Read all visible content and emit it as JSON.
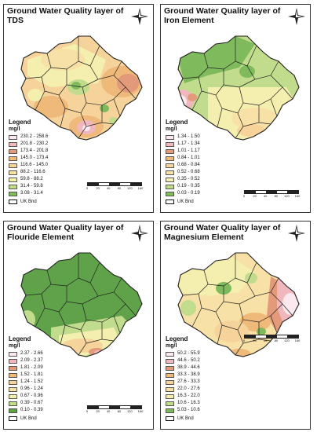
{
  "panels": [
    {
      "title_line1": "Ground Water Quality layer of",
      "title_line2": "TDS",
      "legend_title": "Legend",
      "legend_unit": "mg/l",
      "legend": [
        {
          "label": "230.2 - 258.6",
          "color": "#fbe9ef"
        },
        {
          "label": "201.8 - 230.2",
          "color": "#f0b7bd"
        },
        {
          "label": "173.4 - 201.8",
          "color": "#e39a7a"
        },
        {
          "label": "145.0 - 173.4",
          "color": "#efb979"
        },
        {
          "label": "116.6 - 145.0",
          "color": "#f6d39a"
        },
        {
          "label": "88.2 - 116.6",
          "color": "#f8e1a6"
        },
        {
          "label": "59.8 - 88.2",
          "color": "#f4efae"
        },
        {
          "label": "31.4 - 59.8",
          "color": "#c2dc8d"
        },
        {
          "label": "3.08 - 31.4",
          "color": "#7fba5c"
        }
      ],
      "boundary_label": "UK Bnd",
      "scale_ticks": [
        "0",
        "20",
        "40",
        "80",
        "120",
        "160"
      ]
    },
    {
      "title_line1": "Ground Water Quality layer of",
      "title_line2": "Iron Element",
      "legend_title": "Legend",
      "legend_unit": "mg/l",
      "legend": [
        {
          "label": "1.34 - 1.50",
          "color": "#fbe9ef"
        },
        {
          "label": "1.17 - 1.34",
          "color": "#f0b7bd"
        },
        {
          "label": "1.01 - 1.17",
          "color": "#e39a7a"
        },
        {
          "label": "0.84 - 1.01",
          "color": "#efb979"
        },
        {
          "label": "0.68 - 0.84",
          "color": "#f6d39a"
        },
        {
          "label": "0.52 - 0.68",
          "color": "#f8e1a6"
        },
        {
          "label": "0.35 - 0.52",
          "color": "#f4efae"
        },
        {
          "label": "0.19 - 0.35",
          "color": "#c2dc8d"
        },
        {
          "label": "0.03 - 0.19",
          "color": "#7fba5c"
        }
      ],
      "boundary_label": "UK Bnd",
      "scale_ticks": [
        "0",
        "20",
        "40",
        "80",
        "120",
        "160"
      ]
    },
    {
      "title_line1": "Ground Water Quality layer of",
      "title_line2": "Flouride Element",
      "legend_title": "Legend",
      "legend_unit": "mg/l",
      "legend": [
        {
          "label": "2.37 - 2.66",
          "color": "#fbe9ef"
        },
        {
          "label": "2.09 - 2.37",
          "color": "#f0b7bd"
        },
        {
          "label": "1.81 - 2.09",
          "color": "#e39a7a"
        },
        {
          "label": "1.52 - 1.81",
          "color": "#efb979"
        },
        {
          "label": "1.24 - 1.52",
          "color": "#f6d39a"
        },
        {
          "label": "0.96 - 1.24",
          "color": "#f8e1a6"
        },
        {
          "label": "0.67 - 0.96",
          "color": "#f4efae"
        },
        {
          "label": "0.39 - 0.67",
          "color": "#c2dc8d"
        },
        {
          "label": "0.10 - 0.39",
          "color": "#5fa24a"
        }
      ],
      "boundary_label": "UK Bnd",
      "scale_ticks": [
        "0",
        "20",
        "40",
        "80",
        "120",
        "160"
      ]
    },
    {
      "title_line1": "Ground Water Quality layer of",
      "title_line2": "Magnesium Element",
      "legend_title": "Legend",
      "legend_unit": "mg/l",
      "legend": [
        {
          "label": "50.2 - 55.9",
          "color": "#fbe9ef"
        },
        {
          "label": "44.6 - 50.2",
          "color": "#f0b7bd"
        },
        {
          "label": "38.9 - 44.6",
          "color": "#e39a7a"
        },
        {
          "label": "33.3 - 38.9",
          "color": "#efb979"
        },
        {
          "label": "27.6 - 33.3",
          "color": "#f6d39a"
        },
        {
          "label": "22.0 - 27.6",
          "color": "#f8e1a6"
        },
        {
          "label": "16.3 - 22.0",
          "color": "#f4efae"
        },
        {
          "label": "10.6 - 16.3",
          "color": "#c2dc8d"
        },
        {
          "label": "5.03 - 10.6",
          "color": "#7fba5c"
        }
      ],
      "boundary_label": "UK Bnd",
      "scale_ticks": [
        "0",
        "20",
        "40",
        "80",
        "120",
        "160"
      ]
    }
  ]
}
